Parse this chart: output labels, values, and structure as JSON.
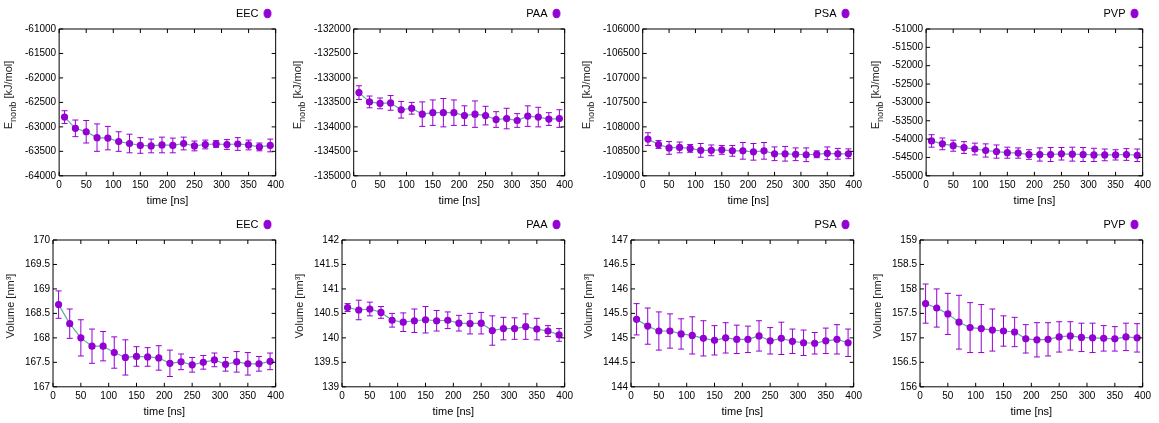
{
  "chart_data": [
    {
      "type": "line",
      "xlabel": "time [ns]",
      "ylabel": "E$_{nonb}$ [kJ/mol]",
      "marker": "circle",
      "legend": "top right",
      "xlim": [
        0,
        400
      ],
      "xticks": [
        0,
        50,
        100,
        150,
        200,
        250,
        300,
        350,
        400
      ],
      "ylim": [
        -64000,
        -61000
      ],
      "yticks": [
        -64000,
        -63500,
        -63000,
        -62500,
        -62000,
        -61500,
        -61000
      ],
      "x": [
        10,
        30,
        50,
        70,
        90,
        110,
        130,
        150,
        170,
        190,
        210,
        230,
        250,
        270,
        290,
        310,
        330,
        350,
        370,
        390
      ],
      "series": [
        {
          "name": "EEC",
          "color": "#9400d3",
          "values": [
            -62800,
            -63030,
            -63100,
            -63220,
            -63230,
            -63300,
            -63340,
            -63380,
            -63390,
            -63370,
            -63380,
            -63340,
            -63390,
            -63360,
            -63350,
            -63360,
            -63350,
            -63370,
            -63410,
            -63380
          ],
          "errors": [
            130,
            170,
            230,
            280,
            240,
            200,
            190,
            160,
            140,
            160,
            150,
            130,
            100,
            90,
            70,
            100,
            130,
            100,
            80,
            130
          ]
        }
      ]
    },
    {
      "type": "line",
      "xlabel": "time [ns]",
      "ylabel": "E$_{nonb}$ [kJ/mol]",
      "marker": "circle",
      "legend": "top right",
      "xlim": [
        0,
        400
      ],
      "xticks": [
        0,
        50,
        100,
        150,
        200,
        250,
        300,
        350,
        400
      ],
      "ylim": [
        -135000,
        -132000
      ],
      "yticks": [
        -135000,
        -134500,
        -134000,
        -133500,
        -133000,
        -132500,
        -132000
      ],
      "x": [
        10,
        30,
        50,
        70,
        90,
        110,
        130,
        150,
        170,
        190,
        210,
        230,
        250,
        270,
        290,
        310,
        330,
        350,
        370,
        390
      ],
      "series": [
        {
          "name": "PAA",
          "color": "#9400d3",
          "values": [
            -133300,
            -133490,
            -133520,
            -133510,
            -133650,
            -133620,
            -133740,
            -133710,
            -133710,
            -133710,
            -133770,
            -133740,
            -133770,
            -133850,
            -133830,
            -133870,
            -133780,
            -133800,
            -133840,
            -133830
          ],
          "errors": [
            140,
            120,
            110,
            150,
            170,
            120,
            250,
            260,
            290,
            260,
            200,
            270,
            190,
            160,
            210,
            140,
            210,
            200,
            130,
            180
          ]
        }
      ]
    },
    {
      "type": "line",
      "xlabel": "time [ns]",
      "ylabel": "E$_{nonb}$ [kJ/mol]",
      "marker": "circle",
      "legend": "top right",
      "xlim": [
        0,
        400
      ],
      "xticks": [
        0,
        50,
        100,
        150,
        200,
        250,
        300,
        350,
        400
      ],
      "ylim": [
        -109000,
        -106000
      ],
      "yticks": [
        -109000,
        -108500,
        -108000,
        -107500,
        -107000,
        -106500,
        -106000
      ],
      "x": [
        10,
        30,
        50,
        70,
        90,
        110,
        130,
        150,
        170,
        190,
        210,
        230,
        250,
        270,
        290,
        310,
        330,
        350,
        370,
        390
      ],
      "series": [
        {
          "name": "PSA",
          "color": "#9400d3",
          "values": [
            -108250,
            -108360,
            -108430,
            -108420,
            -108440,
            -108480,
            -108480,
            -108470,
            -108490,
            -108490,
            -108510,
            -108490,
            -108550,
            -108550,
            -108560,
            -108570,
            -108560,
            -108540,
            -108550,
            -108550
          ],
          "errors": [
            130,
            80,
            130,
            110,
            80,
            140,
            110,
            90,
            110,
            170,
            170,
            170,
            140,
            150,
            130,
            140,
            70,
            130,
            110,
            100
          ]
        }
      ]
    },
    {
      "type": "line",
      "xlabel": "time [ns]",
      "ylabel": "E$_{nonb}$ [kJ/mol]",
      "marker": "circle",
      "legend": "top right",
      "xlim": [
        0,
        400
      ],
      "xticks": [
        0,
        50,
        100,
        150,
        200,
        250,
        300,
        350,
        400
      ],
      "ylim": [
        -55000,
        -51000
      ],
      "yticks": [
        -55000,
        -54500,
        -54000,
        -53500,
        -53000,
        -52500,
        -52000,
        -51500,
        -51000
      ],
      "x": [
        10,
        30,
        50,
        70,
        90,
        110,
        130,
        150,
        170,
        190,
        210,
        230,
        250,
        270,
        290,
        310,
        330,
        350,
        370,
        390
      ],
      "series": [
        {
          "name": "PVP",
          "color": "#9400d3",
          "values": [
            -54050,
            -54130,
            -54180,
            -54230,
            -54270,
            -54310,
            -54340,
            -54370,
            -54380,
            -54420,
            -54420,
            -54420,
            -54400,
            -54410,
            -54420,
            -54430,
            -54430,
            -54430,
            -54420,
            -54440
          ],
          "errors": [
            170,
            160,
            150,
            160,
            160,
            180,
            180,
            150,
            140,
            130,
            180,
            190,
            170,
            190,
            190,
            180,
            160,
            140,
            160,
            170
          ]
        }
      ]
    },
    {
      "type": "line",
      "xlabel": "time [ns]",
      "ylabel": "Volume [nm³]",
      "marker": "circle",
      "legend": "top right",
      "xlim": [
        0,
        400
      ],
      "xticks": [
        0,
        50,
        100,
        150,
        200,
        250,
        300,
        350,
        400
      ],
      "ylim": [
        167,
        170
      ],
      "yticks": [
        167,
        167.5,
        168,
        168.5,
        169,
        169.5,
        170
      ],
      "x": [
        10,
        30,
        50,
        70,
        90,
        110,
        130,
        150,
        170,
        190,
        210,
        230,
        250,
        270,
        290,
        310,
        330,
        350,
        370,
        390
      ],
      "series": [
        {
          "name": "EEC",
          "color": "#9400d3",
          "values": [
            168.68,
            168.29,
            168.0,
            167.83,
            167.83,
            167.7,
            167.6,
            167.62,
            167.61,
            167.59,
            167.48,
            167.51,
            167.45,
            167.5,
            167.55,
            167.46,
            167.51,
            167.47,
            167.47,
            167.52
          ],
          "errors": [
            0.28,
            0.3,
            0.37,
            0.35,
            0.3,
            0.32,
            0.36,
            0.2,
            0.19,
            0.25,
            0.27,
            0.16,
            0.15,
            0.14,
            0.14,
            0.14,
            0.21,
            0.23,
            0.15,
            0.17
          ]
        }
      ]
    },
    {
      "type": "line",
      "xlabel": "time [ns]",
      "ylabel": "Volume [nm³]",
      "marker": "circle",
      "legend": "top right",
      "xlim": [
        0,
        400
      ],
      "xticks": [
        0,
        50,
        100,
        150,
        200,
        250,
        300,
        350,
        400
      ],
      "ylim": [
        139,
        142
      ],
      "yticks": [
        139,
        139.5,
        140,
        140.5,
        141,
        141.5,
        142
      ],
      "x": [
        10,
        30,
        50,
        70,
        90,
        110,
        130,
        150,
        170,
        190,
        210,
        230,
        250,
        270,
        290,
        310,
        330,
        350,
        370,
        390
      ],
      "series": [
        {
          "name": "PAA",
          "color": "#9400d3",
          "values": [
            140.62,
            140.57,
            140.59,
            140.52,
            140.36,
            140.32,
            140.35,
            140.37,
            140.35,
            140.36,
            140.3,
            140.29,
            140.3,
            140.15,
            140.19,
            140.19,
            140.23,
            140.18,
            140.14,
            140.06
          ],
          "errors": [
            0.08,
            0.2,
            0.14,
            0.12,
            0.14,
            0.19,
            0.24,
            0.27,
            0.21,
            0.17,
            0.16,
            0.21,
            0.22,
            0.3,
            0.23,
            0.22,
            0.26,
            0.22,
            0.11,
            0.13
          ]
        }
      ]
    },
    {
      "type": "line",
      "xlabel": "time [ns]",
      "ylabel": "Volume [nm³]",
      "marker": "circle",
      "legend": "top right",
      "xlim": [
        0,
        400
      ],
      "xticks": [
        0,
        50,
        100,
        150,
        200,
        250,
        300,
        350,
        400
      ],
      "ylim": [
        144,
        147
      ],
      "yticks": [
        144,
        144.5,
        145,
        145.5,
        146,
        146.5,
        147
      ],
      "x": [
        10,
        30,
        50,
        70,
        90,
        110,
        130,
        150,
        170,
        190,
        210,
        230,
        250,
        270,
        290,
        310,
        330,
        350,
        370,
        390
      ],
      "series": [
        {
          "name": "PSA",
          "color": "#9400d3",
          "values": [
            145.38,
            145.24,
            145.14,
            145.14,
            145.08,
            145.05,
            144.99,
            144.95,
            145.0,
            144.97,
            144.97,
            145.04,
            144.94,
            144.99,
            144.93,
            144.9,
            144.89,
            144.94,
            144.97,
            144.9
          ],
          "errors": [
            0.32,
            0.37,
            0.39,
            0.35,
            0.31,
            0.38,
            0.36,
            0.3,
            0.31,
            0.29,
            0.27,
            0.31,
            0.27,
            0.33,
            0.25,
            0.26,
            0.22,
            0.26,
            0.3,
            0.28
          ]
        }
      ]
    },
    {
      "type": "line",
      "xlabel": "time [ns]",
      "ylabel": "Volume [nm³]",
      "marker": "circle",
      "legend": "top right",
      "xlim": [
        0,
        400
      ],
      "xticks": [
        0,
        50,
        100,
        150,
        200,
        250,
        300,
        350,
        400
      ],
      "ylim": [
        156,
        159
      ],
      "yticks": [
        156,
        156.5,
        157,
        157.5,
        158,
        158.5,
        159
      ],
      "x": [
        10,
        30,
        50,
        70,
        90,
        110,
        130,
        150,
        170,
        190,
        210,
        230,
        250,
        270,
        290,
        310,
        330,
        350,
        370,
        390
      ],
      "series": [
        {
          "name": "PVP",
          "color": "#9400d3",
          "values": [
            157.7,
            157.61,
            157.49,
            157.32,
            157.21,
            157.19,
            157.16,
            157.14,
            157.12,
            156.98,
            156.96,
            156.97,
            157.02,
            157.04,
            157.01,
            157.0,
            156.99,
            156.98,
            157.02,
            157.0
          ],
          "errors": [
            0.4,
            0.39,
            0.42,
            0.55,
            0.51,
            0.49,
            0.43,
            0.31,
            0.3,
            0.29,
            0.35,
            0.34,
            0.31,
            0.29,
            0.29,
            0.3,
            0.26,
            0.25,
            0.28,
            0.29
          ]
        }
      ]
    }
  ]
}
